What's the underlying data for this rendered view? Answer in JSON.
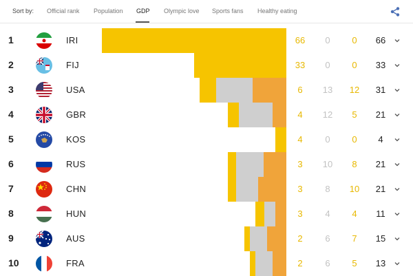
{
  "sort": {
    "label": "Sort by:",
    "tabs": [
      "Official rank",
      "Population",
      "GDP",
      "Olympic love",
      "Sports fans",
      "Healthy eating"
    ],
    "active": "GDP"
  },
  "icons": {
    "share": "share-icon",
    "expand": "chevron-down-icon"
  },
  "colors": {
    "gold": "#f6c400",
    "silver": "#cfcfcf",
    "bronze": "#f0a43a"
  },
  "rows": [
    {
      "rank": "1",
      "code": "IRI",
      "gold": "66",
      "silver": "0",
      "bronze": "0",
      "total": "66",
      "bar": [
        66,
        0,
        0
      ]
    },
    {
      "rank": "2",
      "code": "FIJ",
      "gold": "33",
      "silver": "0",
      "bronze": "0",
      "total": "33",
      "bar": [
        33,
        0,
        0
      ]
    },
    {
      "rank": "3",
      "code": "USA",
      "gold": "6",
      "silver": "13",
      "bronze": "12",
      "total": "31",
      "bar": [
        6,
        13,
        12
      ]
    },
    {
      "rank": "4",
      "code": "GBR",
      "gold": "4",
      "silver": "12",
      "bronze": "5",
      "total": "21",
      "bar": [
        4,
        12,
        5
      ]
    },
    {
      "rank": "5",
      "code": "KOS",
      "gold": "4",
      "silver": "0",
      "bronze": "0",
      "total": "4",
      "bar": [
        4,
        0,
        0
      ]
    },
    {
      "rank": "6",
      "code": "RUS",
      "gold": "3",
      "silver": "10",
      "bronze": "8",
      "total": "21",
      "bar": [
        3,
        10,
        8
      ]
    },
    {
      "rank": "7",
      "code": "CHN",
      "gold": "3",
      "silver": "8",
      "bronze": "10",
      "total": "21",
      "bar": [
        3,
        8,
        10
      ]
    },
    {
      "rank": "8",
      "code": "HUN",
      "gold": "3",
      "silver": "4",
      "bronze": "4",
      "total": "11",
      "bar": [
        3,
        4,
        4
      ]
    },
    {
      "rank": "9",
      "code": "AUS",
      "gold": "2",
      "silver": "6",
      "bronze": "7",
      "total": "15",
      "bar": [
        2,
        6,
        7
      ]
    },
    {
      "rank": "10",
      "code": "FRA",
      "gold": "2",
      "silver": "6",
      "bronze": "5",
      "total": "13",
      "bar": [
        2,
        6,
        5
      ]
    }
  ]
}
